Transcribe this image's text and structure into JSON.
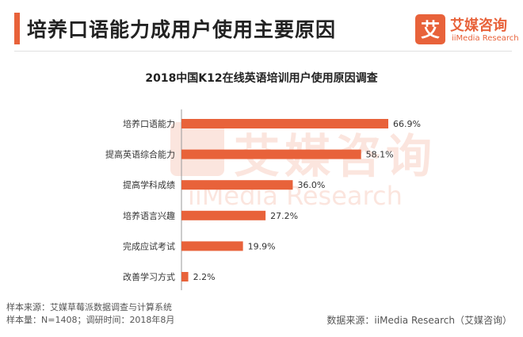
{
  "header": {
    "title": "培养口语能力成用户使用主要原因"
  },
  "logo": {
    "glyph": "艾",
    "name_cn": "艾媒咨询",
    "name_en": "iiMedia Research"
  },
  "watermark": {
    "name_cn": "艾媒咨询",
    "name_en": "iiMedia Research"
  },
  "chart_data": {
    "type": "bar",
    "orientation": "horizontal",
    "title": "2018中国K12在线英语培训用户使用原因调查",
    "categories": [
      "培养口语能力",
      "提高英语综合能力",
      "提高学科成绩",
      "培养语言兴趣",
      "完成应试考试",
      "改善学习方式"
    ],
    "values": [
      66.9,
      58.1,
      36.0,
      27.2,
      19.9,
      2.2
    ],
    "value_labels": [
      "66.9%",
      "58.1%",
      "36.0%",
      "27.2%",
      "19.9%",
      "2.2%"
    ],
    "xlim": [
      0,
      100
    ],
    "bar_color": "#e8623a",
    "grid": false,
    "legend": "none"
  },
  "footer": {
    "source_line": "样本来源：艾媒草莓派数据调查与计算系统",
    "sample_line": "样本量：N=1408；调研时间：2018年8月",
    "data_source": "数据来源：iiMedia Research（艾媒咨询）"
  }
}
